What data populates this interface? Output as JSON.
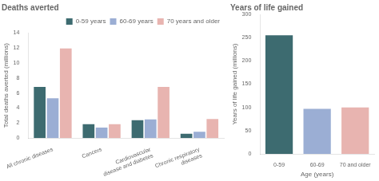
{
  "chart_data": [
    {
      "type": "bar",
      "title": "Deaths averted",
      "y_label": "Total deaths averted (millions)",
      "categories": [
        "All chronic diseases",
        "Cancers",
        "Cardiovascular\ndisease and diabetes",
        "Chronic respiratory\ndiseases"
      ],
      "series": [
        {
          "name": "0-59 years",
          "color": "#3d6b70",
          "values": [
            6.8,
            1.85,
            2.4,
            0.6
          ]
        },
        {
          "name": "60-69 years",
          "color": "#9baed4",
          "values": [
            5.3,
            1.4,
            2.5,
            0.85
          ]
        },
        {
          "name": "70 years and older",
          "color": "#e8b4b0",
          "values": [
            11.9,
            1.85,
            6.8,
            2.55
          ]
        }
      ],
      "ylim": [
        0,
        14
      ],
      "yticks": [
        0,
        2,
        4,
        6,
        8,
        10,
        12,
        14
      ],
      "grid": false,
      "legend": "upper right"
    },
    {
      "type": "bar",
      "title": "Years of life gained",
      "y_label": "Years of life gained (millions)",
      "x_label": "Age (years)",
      "categories": [
        "0-59",
        "60-69",
        "70 and older"
      ],
      "values": [
        255,
        97,
        100
      ],
      "colors": [
        "#3d6b70",
        "#9baed4",
        "#e8b4b0"
      ],
      "ylim": [
        0,
        300
      ],
      "yticks": [
        0,
        50,
        100,
        150,
        200,
        250,
        300
      ],
      "grid": false
    }
  ]
}
